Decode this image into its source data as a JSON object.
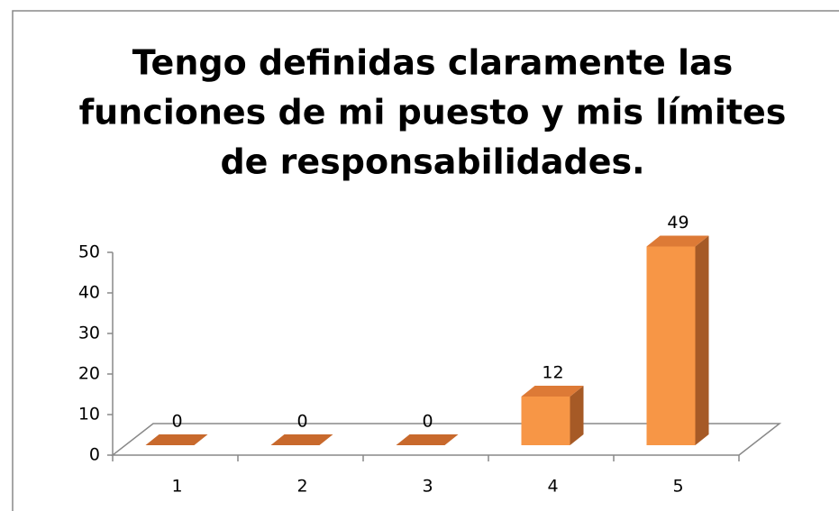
{
  "chart_data": {
    "type": "bar3d",
    "title": [
      "Tengo definidas claramente las",
      "funciones de mi puesto y mis límites",
      "de responsabilidades."
    ],
    "categories": [
      "1",
      "2",
      "3",
      "4",
      "5"
    ],
    "values": [
      0,
      0,
      0,
      12,
      49
    ],
    "color": "#f79646",
    "ylim": [
      0,
      50
    ],
    "yticks": [
      0,
      10,
      20,
      30,
      40,
      50
    ]
  }
}
